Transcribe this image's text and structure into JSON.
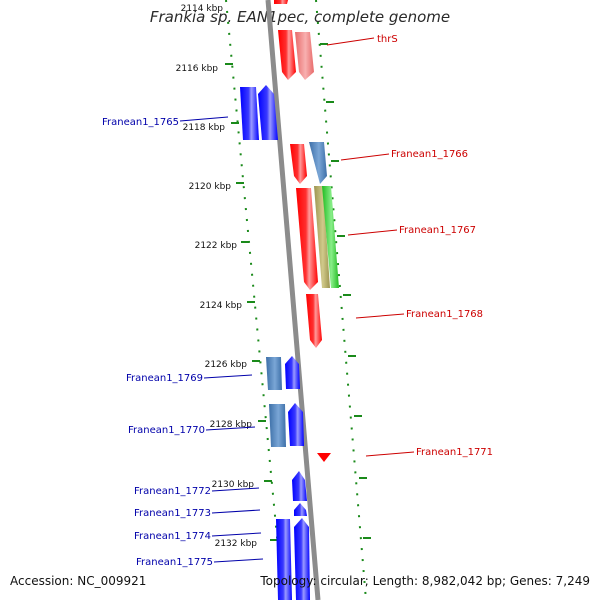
{
  "header": {
    "title": "Frankia sp. EAN1pec, complete genome"
  },
  "footer": {
    "accession": "Accession: NC_009921",
    "summary": "Topology: circular; Length: 8,982,042 bp; Genes: 7,249"
  },
  "scale": {
    "unit": "kbp",
    "ticks": [
      "2114 kbp",
      "2116 kbp",
      "2118 kbp",
      "2120 kbp",
      "2122 kbp",
      "2124 kbp",
      "2126 kbp",
      "2128 kbp",
      "2130 kbp",
      "2132 kbp"
    ]
  },
  "genes": {
    "forward": [
      {
        "label": "thrS",
        "color": "#cc0000"
      },
      {
        "label": "Franean1_1766",
        "color": "#cc0000"
      },
      {
        "label": "Franean1_1767",
        "color": "#cc0000"
      },
      {
        "label": "Franean1_1768",
        "color": "#cc0000"
      },
      {
        "label": "Franean1_1771",
        "color": "#cc0000"
      }
    ],
    "reverse": [
      {
        "label": "Franean1_1765",
        "color": "#0000aa"
      },
      {
        "label": "Franean1_1769",
        "color": "#0000aa"
      },
      {
        "label": "Franean1_1770",
        "color": "#0000aa"
      },
      {
        "label": "Franean1_1772",
        "color": "#0000aa"
      },
      {
        "label": "Franean1_1773",
        "color": "#0000aa"
      },
      {
        "label": "Franean1_1774",
        "color": "#0000aa"
      },
      {
        "label": "Franean1_1775",
        "color": "#0000aa"
      }
    ]
  },
  "colors": {
    "backbone": "#8c8c8c",
    "forward_cds": "#ff0000",
    "reverse_cds": "#0000ff",
    "steel_feature": "#4a7fb5",
    "light_red_feature": "#f08080",
    "olive_feature": "#a9a35a",
    "green_feature": "#33cc33",
    "dotted_track": "#1a8a1a",
    "forward_label": "#cc0000",
    "reverse_label": "#0000aa"
  }
}
